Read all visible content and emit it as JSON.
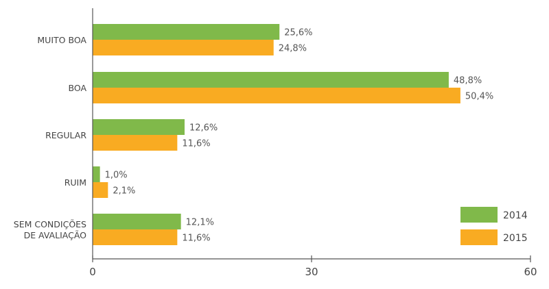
{
  "chart_data": {
    "type": "bar",
    "orientation": "horizontal",
    "categories": [
      [
        "MUITO BOA"
      ],
      [
        "BOA"
      ],
      [
        "REGULAR"
      ],
      [
        "RUIM"
      ],
      [
        "SEM CONDIÇÕES",
        "DE AVALIAÇÃO"
      ]
    ],
    "series": [
      {
        "name": "2014",
        "color": "#80b94a",
        "values": [
          25.6,
          48.8,
          12.6,
          1.0,
          12.1
        ],
        "labels": [
          "25,6%",
          "48,8%",
          "12,6%",
          "1,0%",
          "12,1%"
        ]
      },
      {
        "name": "2015",
        "color": "#f9ab22",
        "values": [
          24.8,
          50.4,
          11.6,
          2.1,
          11.6
        ],
        "labels": [
          "24,8%",
          "50,4%",
          "11,6%",
          "2,1%",
          "11,6%"
        ]
      }
    ],
    "xlim": [
      0,
      60
    ],
    "xticks": [
      0,
      30,
      60
    ],
    "xtick_labels": [
      "0",
      "30",
      "60"
    ],
    "legend_placement": "bottom-right",
    "grid": false,
    "title": "",
    "xlabel": "",
    "ylabel": ""
  }
}
